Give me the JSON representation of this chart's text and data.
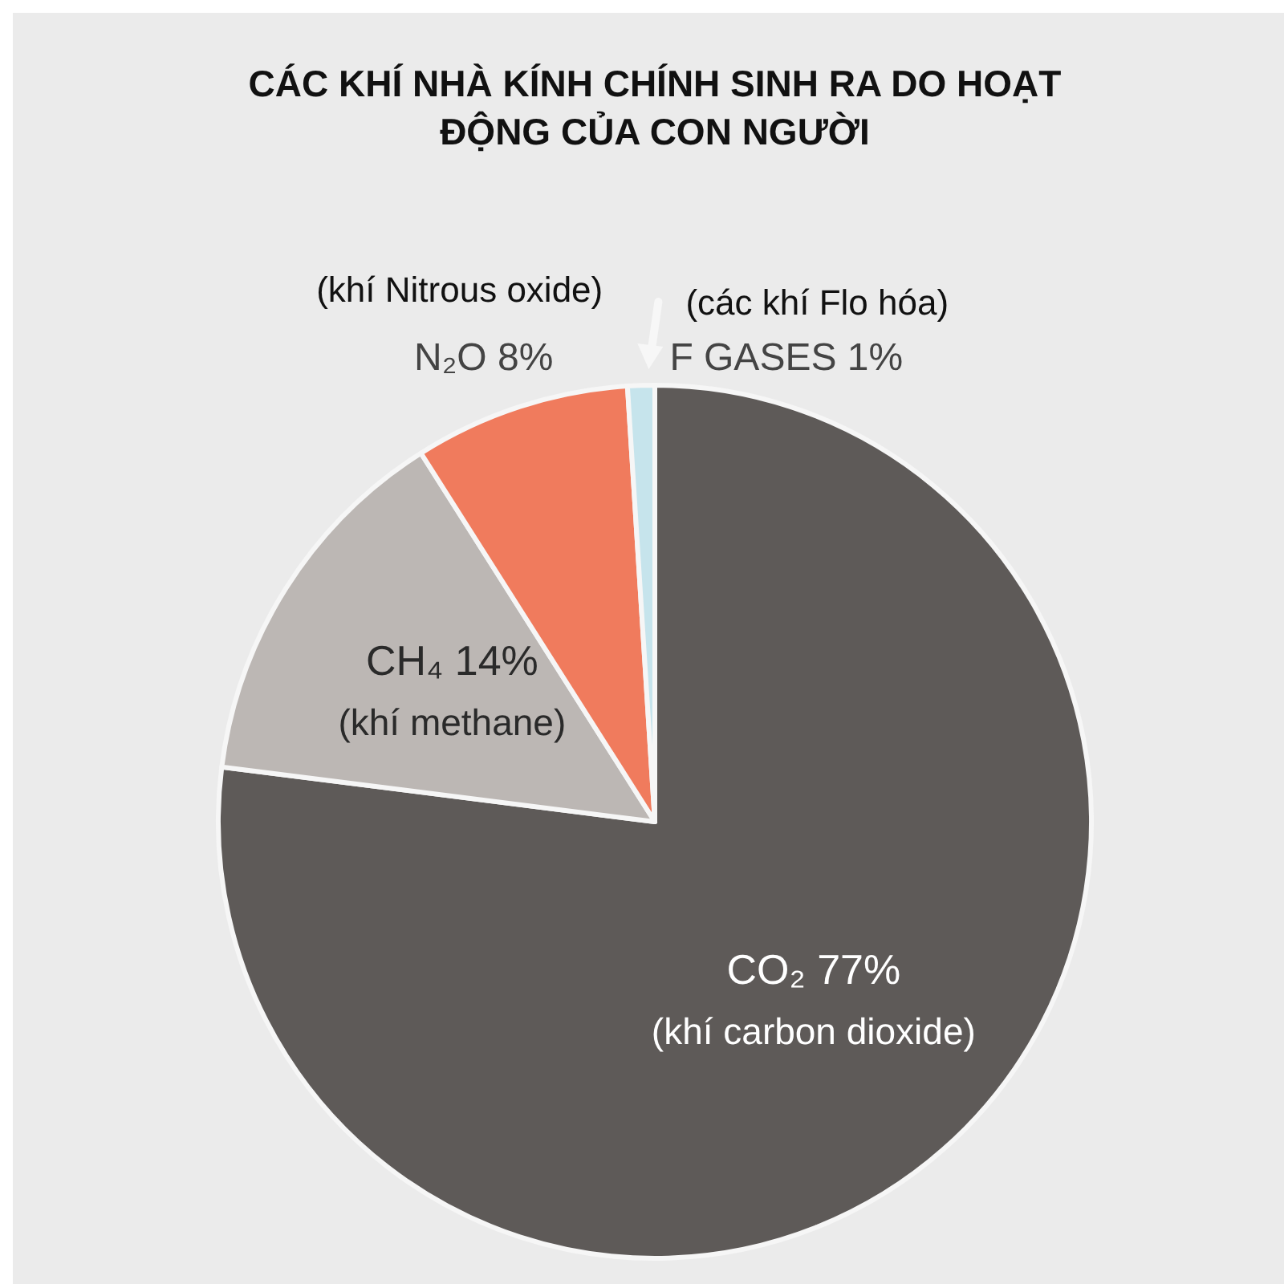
{
  "chart_data": {
    "type": "pie",
    "title": "CÁC KHÍ NHÀ KÍNH CHÍNH SINH RA DO HOẠT ĐỘNG CỦA CON NGƯỜI",
    "categories": [
      "CO₂",
      "CH₄",
      "N₂O",
      "F GASES"
    ],
    "values": [
      77,
      14,
      8,
      1
    ],
    "value_labels": [
      "77%",
      "14%",
      "8%",
      "1%"
    ],
    "colors": [
      "#5e5a58",
      "#bcb7b4",
      "#f07b5d",
      "#c6e4ec"
    ],
    "annotations": [
      "(khí carbon dioxide)",
      "(khí methane)",
      "(khí Nitrous oxide)",
      "(các khí Flo hóa)"
    ]
  }
}
